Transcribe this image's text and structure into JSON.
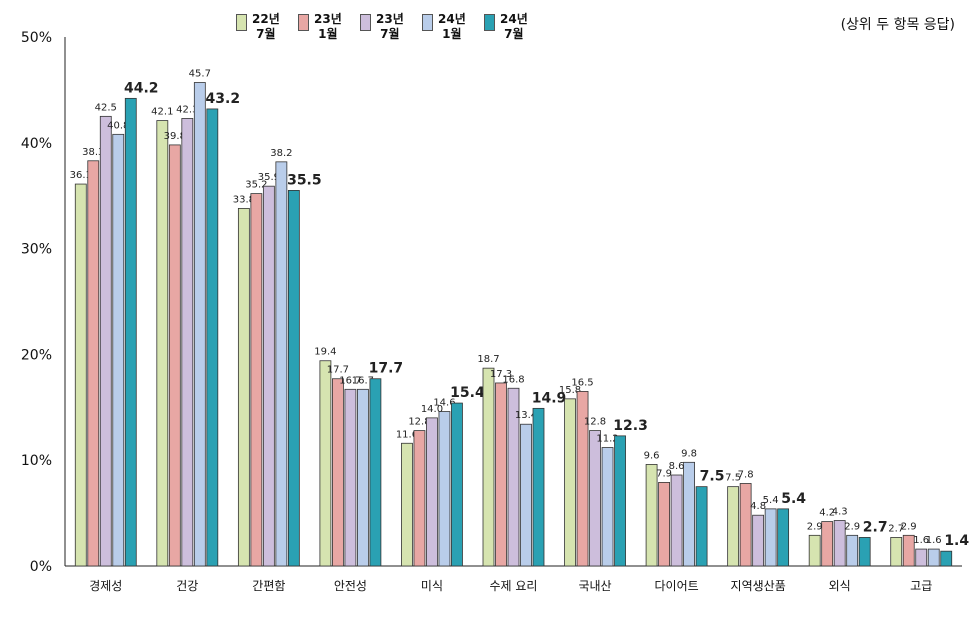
{
  "chart_data": {
    "type": "bar",
    "note": "(상위 두 항목 응답)",
    "y_ticks": [
      "0%",
      "10%",
      "20%",
      "30%",
      "40%",
      "50%"
    ],
    "ylim": [
      0,
      50
    ],
    "grid": false,
    "legend_position": "top-left",
    "categories": [
      "경제성",
      "건강",
      "간편함",
      "안전성",
      "미식",
      "수제 요리",
      "국내산",
      "다이어트",
      "지역생산품",
      "외식",
      "고급"
    ],
    "series": [
      {
        "name": "22년\n7월",
        "color": "#d6e4b0",
        "values": [
          36.1,
          42.1,
          33.8,
          19.4,
          11.6,
          18.7,
          15.8,
          9.6,
          7.5,
          2.9,
          2.7
        ]
      },
      {
        "name": "23년\n1월",
        "color": "#e8a7a4",
        "values": [
          38.3,
          39.8,
          35.2,
          17.7,
          12.8,
          17.3,
          16.5,
          7.9,
          7.8,
          4.2,
          2.9
        ]
      },
      {
        "name": "23년\n7월",
        "color": "#cdbedc",
        "values": [
          42.5,
          42.3,
          35.9,
          16.7,
          14.0,
          16.8,
          12.8,
          8.6,
          4.8,
          4.3,
          1.6
        ]
      },
      {
        "name": "24년\n1월",
        "color": "#b9cdea",
        "values": [
          40.8,
          45.7,
          38.2,
          16.7,
          14.6,
          13.4,
          11.2,
          9.8,
          5.4,
          2.9,
          1.6
        ]
      },
      {
        "name": "24년\n7월",
        "color": "#2aa1b3",
        "values": [
          44.2,
          43.2,
          35.5,
          17.7,
          15.4,
          14.9,
          12.3,
          7.5,
          5.4,
          2.7,
          1.4
        ]
      }
    ],
    "labels": [
      [
        "36.1",
        "38.3",
        "42.5",
        "40.8",
        "44.2"
      ],
      [
        "42.1",
        "39.8",
        "42.3",
        "45.7",
        "43.2"
      ],
      [
        "33.8",
        "35.2",
        "35.9",
        "38.2",
        "35.5"
      ],
      [
        "19.4",
        "17.7",
        "16.7",
        "16.7",
        "17.7"
      ],
      [
        "11.6",
        "12.8",
        "14.0",
        "14.6",
        "15.4"
      ],
      [
        "18.7",
        "17.3",
        "16.8",
        "13.4",
        "14.9"
      ],
      [
        "15.8",
        "16.5",
        "12.8",
        "11.2",
        "12.3"
      ],
      [
        "9.6",
        "7.9",
        "8.6",
        "9.8",
        "7.5"
      ],
      [
        "7.5",
        "7.8",
        "4.8",
        "5.4",
        "5.4"
      ],
      [
        "2.9",
        "4.2",
        "4.3",
        "2.9",
        "2.7"
      ],
      [
        "2.7",
        "2.9",
        "1.6",
        "1.6",
        "1.4"
      ]
    ]
  }
}
